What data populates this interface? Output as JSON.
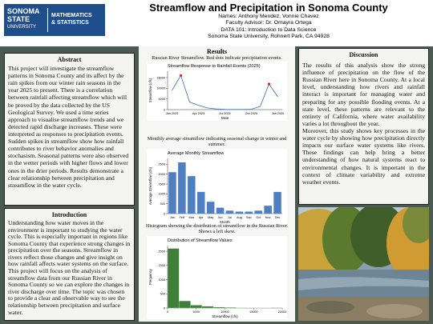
{
  "header": {
    "logo": {
      "line1": "SONOMA",
      "line2": "STATE",
      "line3": "UNIVERSITY",
      "dept1": "MATHEMATICS",
      "dept2": "& STATISTICS"
    },
    "title": "Streamflow and Precipitation in Sonoma County",
    "lines": [
      "Names: Anthony Mendez, Vonnie Chavez",
      "Faculty Advisor: Dr. Omayra Ortega",
      "DATA 101: Introduction to Data Science",
      "Sonoma State University, Rohnert Park, CA 94928"
    ]
  },
  "abstract": {
    "heading": "Abstract",
    "text": "This project will investigate the streamflow patterns in Sonoma County and its affect by the rain spikes from our winter rain seasons in the year 2025 to present. There is a correlation between rainfall affecting streamflow which will be proved by the data collected by the US Geological Survey. We used a time series approach to visualise streamflow trends and we detected rapid discharge increases. These were interpreted as responses to precipitation events. Sudden spikes in streamflow show how rainfall contributes to river behavior anomalies and stochasism. Seasonal patterns were also observed in the wetter periods with higher flows and lower ones in the drier periods. Results demonstrate a clear relationship between precipitation and streamflow in the water cycle."
  },
  "introduction": {
    "heading": "Introduction",
    "text": "Understanding how water moves in the environment is important to studying the water cycle. This is especially important in regions like Sonoma County that experience strong changes in precipitation over the seasons. Streamflow in rivers reflect those changes and give insight on how rainfall affects water systems on the surface. This project will focus on the analysis of streamflow data from our Russian River in Sonoma County so we can explore the changes in river discharge over time. The topic was chosen to provide a clear and observable way to see the relationship between precipitation and surface water."
  },
  "results": {
    "heading": "Results",
    "figures": [
      {
        "caption": "Russian River Streamflow. Red dots indicate precipitation events.",
        "chart_data": {
          "type": "line",
          "title": "Streamflow Response to Rainfall Events (2025)",
          "xlabel": "Date",
          "ylabel": "Streamflow (cfs)",
          "categories": [
            "Jan 2025",
            null,
            null,
            "Apr 2025",
            null,
            null,
            "Jul 2025",
            null,
            null,
            "Oct 2025",
            null,
            null,
            "Jan 2026"
          ],
          "values": [
            9000,
            16000,
            3500,
            2000,
            800,
            300,
            150,
            100,
            100,
            200,
            1500,
            12000,
            6000
          ],
          "color": "#3a6fb0",
          "event_color": "#d62728",
          "ylim": [
            0,
            18000
          ],
          "yticks": [
            0,
            5000,
            10000,
            15000
          ]
        }
      },
      {
        "caption": "Monthly average streamflow indicating seasonal change in winter and summer.",
        "chart_data": {
          "type": "bar",
          "title": "Average Monthly Streamflow",
          "xlabel": "Month",
          "ylabel": "Average Streamflow (cfs)",
          "categories": [
            "Jan",
            "Feb",
            "Mar",
            "Apr",
            "May",
            "Jun",
            "Jul",
            "Aug",
            "Sep",
            "Oct",
            "Nov",
            "Dec"
          ],
          "values": [
            2100,
            2600,
            1900,
            1100,
            600,
            300,
            150,
            100,
            100,
            150,
            400,
            1100
          ],
          "color": "#4f7fbf",
          "ylim": [
            0,
            2800
          ],
          "yticks": [
            0,
            500,
            1000,
            1500,
            2000,
            2500
          ]
        }
      },
      {
        "caption": "Histogram showing the distribution of streamflow in the Russian River. Shows a left skew.",
        "chart_data": {
          "type": "histogram",
          "title": "Distribution of Streamflow Values",
          "xlabel": "Streamflow (cfs)",
          "ylabel": "Frequency",
          "bins": [
            0,
            2000,
            4000,
            6000,
            8000,
            10000,
            12000,
            14000,
            16000,
            18000,
            20000
          ],
          "values": [
            2100,
            250,
            100,
            60,
            30,
            20,
            10,
            5,
            3,
            2
          ],
          "color": "#3f7f3a",
          "xlim": [
            0,
            20000
          ],
          "xticks": [
            0,
            5000,
            10000,
            15000,
            20000
          ],
          "ylim": [
            0,
            2200
          ],
          "yticks": [
            0,
            500,
            1000,
            1500,
            2000
          ]
        }
      }
    ]
  },
  "discussion": {
    "heading": "Discussion",
    "paragraphs": [
      "The results of this analysis show the strong influence of precipitation on the flow of the Russian River here in Sonoma County. At a local level, understanding how rivers and rainfall interact is important for managing water and preparing for any possible flooding events. At a state level, these patterns are relevant to the entirety of California, where water availability varies a lot throughout the year.",
      "Moreover, this study shows key processes in the water cycle by showing how precipitation directly impacts our surface water systems like rivers. These findings can help bring a better understanding of how natural systems react to environmental changes. It is important in the context of climate variability and extreme weather events."
    ]
  }
}
